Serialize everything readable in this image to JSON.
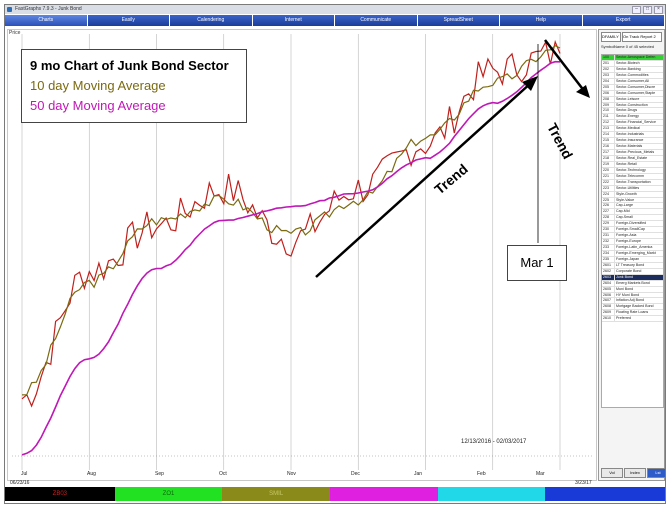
{
  "window": {
    "title": "FastGraphs 7.9.3 - Junk Bond"
  },
  "tabs": [
    {
      "label": "Charts"
    },
    {
      "label": "Easily"
    },
    {
      "label": "Calendering"
    },
    {
      "label": "Internet"
    },
    {
      "label": "Communicate"
    },
    {
      "label": "SpreadSheet"
    },
    {
      "label": "Help"
    },
    {
      "label": "Export"
    }
  ],
  "chart": {
    "price_label": "Price",
    "legend": {
      "title": "9 mo Chart of Junk Bond Sector",
      "ma10": "10 day Moving Average",
      "ma50": "50 day Moving Average"
    },
    "annotation": "Mar 1",
    "trend_up": "Trend",
    "trend_down": "Trend",
    "date_range": "12/13/2016 - 02/03/2017",
    "months": [
      "Jul",
      "Aug",
      "Sep",
      "Oct",
      "Nov",
      "Dec",
      "Jan",
      "Feb",
      "Mar"
    ],
    "start_date": "06/23/16",
    "end_date": "3/23/17",
    "colors": {
      "price": "#c0201c",
      "ma10": "#7a6a10",
      "ma50": "#c018b6",
      "trendline": "#000000"
    }
  },
  "chart_data": {
    "type": "line",
    "x": [
      "Jul",
      "Aug",
      "Sep",
      "Oct",
      "Nov",
      "Dec",
      "Jan",
      "Feb",
      "Mar"
    ],
    "series": [
      {
        "name": "10 day Moving Average",
        "values": [
          50,
          130,
          175,
          190,
          165,
          190,
          235,
          275,
          300
        ]
      },
      {
        "name": "50 day Moving Average",
        "values": [
          5,
          75,
          140,
          175,
          185,
          195,
          220,
          260,
          290
        ]
      }
    ]
  },
  "sidebar": {
    "selector": "DFAMILY",
    "dropdown": "On Track Report 2",
    "header_symbol": "Symbol",
    "header_name": "Name 0 of 45 selected",
    "items": [
      {
        "sym": "100",
        "name": "Sector-Aerospace Defen"
      },
      {
        "sym": "201",
        "name": "Sector-Biotech"
      },
      {
        "sym": "202",
        "name": "Sector-Banking"
      },
      {
        "sym": "203",
        "name": "Sector-Commodities"
      },
      {
        "sym": "204",
        "name": "Sector-Consumer,All"
      },
      {
        "sym": "205",
        "name": "Sector-Consumer,Discre"
      },
      {
        "sym": "206",
        "name": "Sector-Consumer,Staple"
      },
      {
        "sym": "208",
        "name": "Sector-Leisure"
      },
      {
        "sym": "209",
        "name": "Sector-Construction"
      },
      {
        "sym": "210",
        "name": "Sector-Drugs"
      },
      {
        "sym": "211",
        "name": "Sector-Energy"
      },
      {
        "sym": "212",
        "name": "Sector-Financial_Service"
      },
      {
        "sym": "213",
        "name": "Sector-Medical"
      },
      {
        "sym": "214",
        "name": "Sector-Industrials"
      },
      {
        "sym": "215",
        "name": "Sector-Insurance"
      },
      {
        "sym": "216",
        "name": "Sector-Materials"
      },
      {
        "sym": "217",
        "name": "Sector-Precious_Metals"
      },
      {
        "sym": "218",
        "name": "Sector-Real_Estate"
      },
      {
        "sym": "219",
        "name": "Sector-Retail"
      },
      {
        "sym": "220",
        "name": "Sector-Technology"
      },
      {
        "sym": "221",
        "name": "Sector-Telecomm"
      },
      {
        "sym": "222",
        "name": "Sector-Transportation"
      },
      {
        "sym": "223",
        "name": "Sector-Utilities"
      },
      {
        "sym": "224",
        "name": "Style-Growth"
      },
      {
        "sym": "225",
        "name": "Style-Value"
      },
      {
        "sym": "226",
        "name": "Cap-Large"
      },
      {
        "sym": "227",
        "name": "Cap-Mid"
      },
      {
        "sym": "228",
        "name": "Cap-Small"
      },
      {
        "sym": "229",
        "name": "Foreign-Diversified"
      },
      {
        "sym": "230",
        "name": "Foreign-SmallCap"
      },
      {
        "sym": "231",
        "name": "Foreign-Asia"
      },
      {
        "sym": "232",
        "name": "Foreign-Europe"
      },
      {
        "sym": "233",
        "name": "Foreign-Latin_America"
      },
      {
        "sym": "234",
        "name": "Foreign-Emerging_Markt"
      },
      {
        "sym": "235",
        "name": "Foreign-Japan"
      },
      {
        "sym": "2601",
        "name": "LT Treasury Bond"
      },
      {
        "sym": "2602",
        "name": "Corporate Bond"
      },
      {
        "sym": "2603",
        "name": "Junk Bond"
      },
      {
        "sym": "2604",
        "name": "Emerg Markets Bond"
      },
      {
        "sym": "2605",
        "name": "Muni Bond"
      },
      {
        "sym": "2606",
        "name": "HY Muni Bond"
      },
      {
        "sym": "2607",
        "name": "Inflation Adj Bond"
      },
      {
        "sym": "2608",
        "name": "Mortgage Backed Bond"
      },
      {
        "sym": "2609",
        "name": "Floating Rate Loans"
      },
      {
        "sym": "2610",
        "name": "Preferred"
      }
    ],
    "buttons": [
      {
        "label": "Vol"
      },
      {
        "label": "Index"
      },
      {
        "label": "Lst"
      }
    ]
  },
  "statusbar": [
    {
      "label": "ZB03",
      "bg": "#000000",
      "fg": "#d02020"
    },
    {
      "label": "ZO1",
      "bg": "#22e022",
      "fg": "#0a6a0a"
    },
    {
      "label": "SMIL",
      "bg": "#8a8a1a",
      "fg": "#c8c86a"
    },
    {
      "label": "",
      "bg": "#e020e0",
      "fg": "#ffffff"
    },
    {
      "label": "",
      "bg": "#20d8e8",
      "fg": "#ffffff"
    },
    {
      "label": "",
      "bg": "#1a3ad8",
      "fg": "#ffffff"
    }
  ]
}
